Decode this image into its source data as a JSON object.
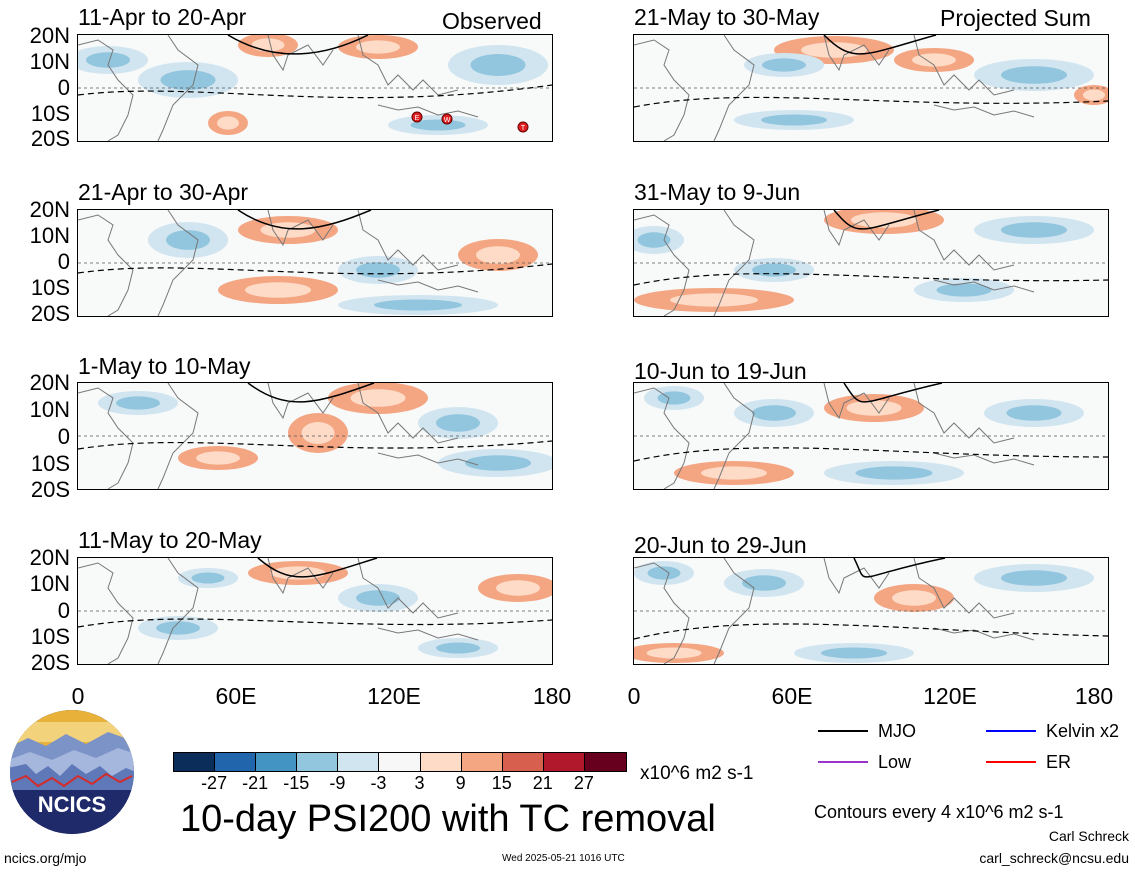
{
  "header": {
    "observed": "Observed",
    "projected": "Projected Sum"
  },
  "panels": [
    {
      "title": "11-Apr to 20-Apr",
      "group": "observed",
      "tc_markers": [
        "E",
        "W",
        "T"
      ]
    },
    {
      "title": "21-Apr to 30-Apr",
      "group": "observed"
    },
    {
      "title": "1-May to 10-May",
      "group": "observed"
    },
    {
      "title": "11-May to 20-May",
      "group": "observed"
    },
    {
      "title": "21-May to 30-May",
      "group": "projected"
    },
    {
      "title": "31-May to 9-Jun",
      "group": "projected"
    },
    {
      "title": "10-Jun to 19-Jun",
      "group": "projected"
    },
    {
      "title": "20-Jun to 29-Jun",
      "group": "projected"
    }
  ],
  "lat_labels": [
    "20N",
    "10N",
    "0",
    "10S",
    "20S"
  ],
  "lon_labels": [
    "0",
    "60E",
    "120E",
    "180"
  ],
  "colorbar": {
    "colors": [
      "#0b2d5a",
      "#2166ac",
      "#4393c3",
      "#92c5de",
      "#d1e5f0",
      "#f7f7f7",
      "#fddbc7",
      "#f4a582",
      "#d6604d",
      "#b2182b",
      "#67001f"
    ],
    "ticks": [
      "-27",
      "-21",
      "-15",
      "-9",
      "-3",
      "3",
      "9",
      "15",
      "21",
      "27"
    ],
    "unit": "x10^6 m2 s-1"
  },
  "legend": {
    "items": [
      {
        "label": "MJO",
        "color": "#000000"
      },
      {
        "label": "Kelvin x2",
        "color": "#0000ff"
      },
      {
        "label": "Low",
        "color": "#9933cc"
      },
      {
        "label": "ER",
        "color": "#ff0000"
      }
    ],
    "contour_note": "Contours every 4 x10^6 m2 s-1"
  },
  "main_title": "10-day PSI200 with TC removal",
  "logo": {
    "text": "NCICS"
  },
  "footer": {
    "url": "ncics.org/mjo",
    "timestamp": "Wed 2025-05-21 1016 UTC",
    "author": "Carl Schreck",
    "email": "carl_schreck@ncsu.edu"
  }
}
